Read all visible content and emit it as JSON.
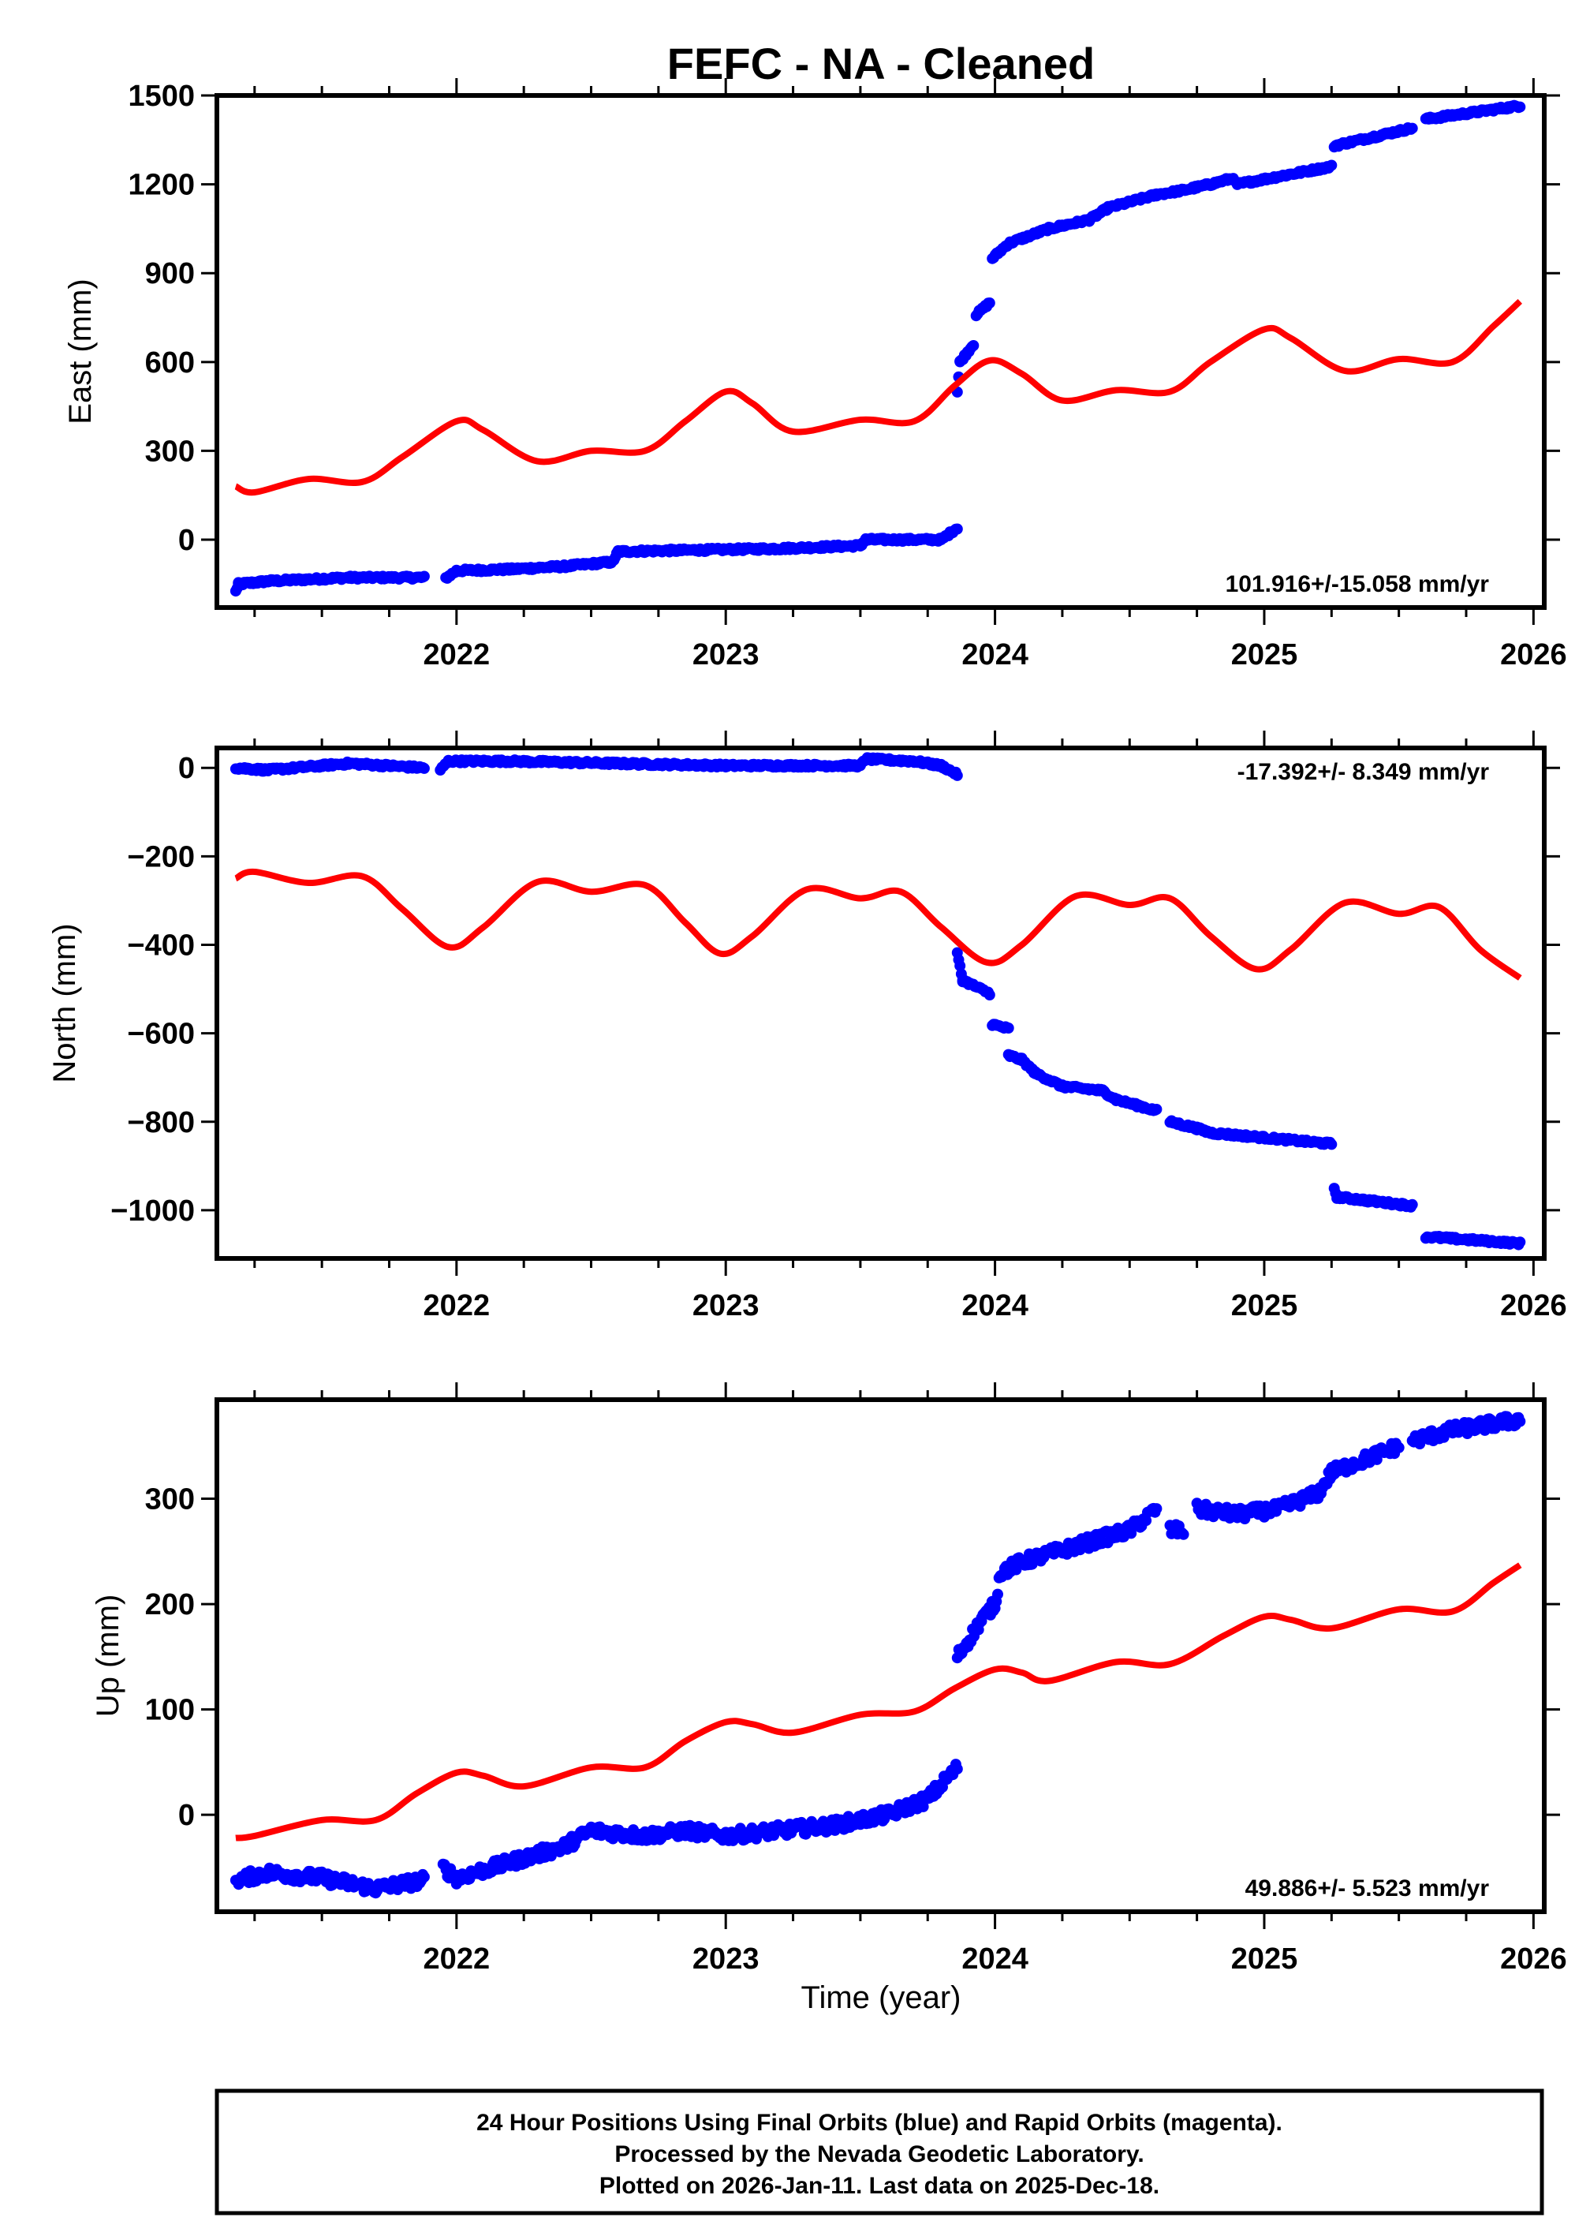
{
  "title": "FEFC  - NA - Cleaned",
  "xlabel": "Time (year)",
  "caption": [
    "24 Hour Positions Using Final Orbits (blue) and Rapid Orbits (magenta).",
    "Processed by the Nevada Geodetic Laboratory.",
    "Plotted on 2026-Jan-11. Last data on 2025-Dec-18."
  ],
  "colors": {
    "observed": "#0000ff",
    "model": "#ff0000",
    "axis": "#000000"
  },
  "chart_data": [
    {
      "type": "scatter",
      "name": "east",
      "ylabel": "East (mm)",
      "rate_label": "101.916+/-15.058 mm/yr",
      "xlim": [
        2021.11,
        2026.04
      ],
      "ylim": [
        -229,
        1500
      ],
      "xticks": [
        2022,
        2023,
        2024,
        2025,
        2026
      ],
      "yticks": [
        0,
        300,
        600,
        900,
        1200,
        1500
      ],
      "observed_segments": [
        [
          [
            2021.18,
            -175
          ],
          [
            2021.19,
            -150
          ],
          [
            2021.3,
            -140
          ],
          [
            2021.6,
            -128
          ],
          [
            2021.88,
            -128
          ]
        ],
        [
          [
            2021.96,
            -130
          ],
          [
            2022.0,
            -105
          ],
          [
            2022.2,
            -100
          ],
          [
            2022.4,
            -90
          ],
          [
            2022.58,
            -75
          ],
          [
            2022.6,
            -40
          ],
          [
            2022.9,
            -35
          ],
          [
            2023.2,
            -30
          ],
          [
            2023.5,
            -20
          ],
          [
            2023.52,
            0
          ],
          [
            2023.8,
            0
          ],
          [
            2023.86,
            40
          ]
        ],
        [
          [
            2023.86,
            500
          ],
          [
            2023.87,
            600
          ],
          [
            2023.92,
            660
          ]
        ],
        [
          [
            2023.93,
            760
          ],
          [
            2023.98,
            800
          ]
        ],
        [
          [
            2023.99,
            950
          ],
          [
            2024.05,
            1000
          ],
          [
            2024.2,
            1050
          ],
          [
            2024.35,
            1080
          ],
          [
            2024.42,
            1120
          ],
          [
            2024.6,
            1165
          ],
          [
            2024.7,
            1180
          ],
          [
            2024.8,
            1200
          ],
          [
            2024.88,
            1220
          ],
          [
            2024.9,
            1200
          ],
          [
            2025.25,
            1260
          ]
        ],
        [
          [
            2025.26,
            1330
          ],
          [
            2025.55,
            1390
          ]
        ],
        [
          [
            2025.6,
            1420
          ],
          [
            2025.95,
            1465
          ]
        ]
      ],
      "model_curve": [
        [
          2021.18,
          180
        ],
        [
          2021.25,
          160
        ],
        [
          2021.45,
          205
        ],
        [
          2021.65,
          195
        ],
        [
          2021.8,
          280
        ],
        [
          2022.0,
          400
        ],
        [
          2022.1,
          370
        ],
        [
          2022.3,
          265
        ],
        [
          2022.5,
          300
        ],
        [
          2022.7,
          300
        ],
        [
          2022.85,
          400
        ],
        [
          2023.0,
          500
        ],
        [
          2023.1,
          460
        ],
        [
          2023.25,
          365
        ],
        [
          2023.5,
          405
        ],
        [
          2023.7,
          400
        ],
        [
          2023.85,
          520
        ],
        [
          2023.98,
          605
        ],
        [
          2024.1,
          560
        ],
        [
          2024.25,
          470
        ],
        [
          2024.45,
          505
        ],
        [
          2024.65,
          500
        ],
        [
          2024.8,
          600
        ],
        [
          2025.0,
          710
        ],
        [
          2025.1,
          680
        ],
        [
          2025.3,
          570
        ],
        [
          2025.5,
          610
        ],
        [
          2025.7,
          600
        ],
        [
          2025.85,
          720
        ],
        [
          2025.95,
          805
        ]
      ]
    },
    {
      "type": "scatter",
      "name": "north",
      "ylabel": "North (mm)",
      "rate_label": "-17.392+/- 8.349 mm/yr",
      "xlim": [
        2021.11,
        2026.04
      ],
      "ylim": [
        -1109,
        45
      ],
      "xticks": [
        2022,
        2023,
        2024,
        2025,
        2026
      ],
      "yticks": [
        0,
        -200,
        -400,
        -600,
        -800,
        -1000
      ],
      "observed_segments": [
        [
          [
            2021.18,
            0
          ],
          [
            2021.3,
            -5
          ],
          [
            2021.6,
            10
          ],
          [
            2021.88,
            0
          ]
        ],
        [
          [
            2021.94,
            -5
          ],
          [
            2021.97,
            15
          ],
          [
            2022.2,
            15
          ],
          [
            2022.6,
            10
          ],
          [
            2023.0,
            5
          ],
          [
            2023.5,
            5
          ],
          [
            2023.52,
            20
          ],
          [
            2023.7,
            15
          ],
          [
            2023.8,
            5
          ],
          [
            2023.86,
            -15
          ]
        ],
        [
          [
            2023.86,
            -420
          ],
          [
            2023.88,
            -480
          ],
          [
            2023.98,
            -510
          ]
        ],
        [
          [
            2023.99,
            -580
          ],
          [
            2024.05,
            -590
          ]
        ],
        [
          [
            2024.05,
            -650
          ],
          [
            2024.1,
            -660
          ],
          [
            2024.15,
            -690
          ],
          [
            2024.25,
            -720
          ],
          [
            2024.4,
            -730
          ],
          [
            2024.45,
            -750
          ],
          [
            2024.6,
            -775
          ]
        ],
        [
          [
            2024.65,
            -800
          ],
          [
            2024.75,
            -815
          ],
          [
            2024.8,
            -825
          ],
          [
            2025.25,
            -850
          ]
        ],
        [
          [
            2025.26,
            -950
          ],
          [
            2025.27,
            -970
          ],
          [
            2025.55,
            -990
          ]
        ],
        [
          [
            2025.6,
            -1060
          ],
          [
            2025.95,
            -1075
          ]
        ]
      ],
      "model_curve": [
        [
          2021.18,
          -250
        ],
        [
          2021.25,
          -235
        ],
        [
          2021.45,
          -260
        ],
        [
          2021.65,
          -245
        ],
        [
          2021.8,
          -320
        ],
        [
          2021.97,
          -405
        ],
        [
          2022.1,
          -360
        ],
        [
          2022.3,
          -258
        ],
        [
          2022.5,
          -280
        ],
        [
          2022.7,
          -265
        ],
        [
          2022.85,
          -350
        ],
        [
          2022.98,
          -420
        ],
        [
          2023.1,
          -380
        ],
        [
          2023.3,
          -275
        ],
        [
          2023.5,
          -295
        ],
        [
          2023.65,
          -280
        ],
        [
          2023.8,
          -360
        ],
        [
          2023.97,
          -440
        ],
        [
          2024.1,
          -400
        ],
        [
          2024.3,
          -290
        ],
        [
          2024.5,
          -310
        ],
        [
          2024.65,
          -295
        ],
        [
          2024.8,
          -380
        ],
        [
          2024.97,
          -455
        ],
        [
          2025.1,
          -410
        ],
        [
          2025.3,
          -305
        ],
        [
          2025.5,
          -330
        ],
        [
          2025.65,
          -315
        ],
        [
          2025.8,
          -410
        ],
        [
          2025.95,
          -475
        ]
      ]
    },
    {
      "type": "scatter",
      "name": "up",
      "ylabel": "Up (mm)",
      "rate_label": "49.886+/- 5.523 mm/yr",
      "xlim": [
        2021.11,
        2026.04
      ],
      "ylim": [
        -92,
        394
      ],
      "xticks": [
        2022,
        2023,
        2024,
        2025,
        2026
      ],
      "yticks": [
        0,
        100,
        200,
        300
      ],
      "observed_segments": [
        [
          [
            2021.18,
            -62
          ],
          [
            2021.3,
            -55
          ],
          [
            2021.5,
            -60
          ],
          [
            2021.7,
            -70
          ],
          [
            2021.88,
            -62
          ]
        ],
        [
          [
            2021.95,
            -50
          ],
          [
            2022.0,
            -60
          ],
          [
            2022.2,
            -45
          ],
          [
            2022.4,
            -30
          ],
          [
            2022.5,
            -15
          ],
          [
            2022.7,
            -20
          ],
          [
            2022.85,
            -15
          ],
          [
            2023.0,
            -20
          ],
          [
            2023.2,
            -15
          ],
          [
            2023.4,
            -10
          ],
          [
            2023.6,
            0
          ],
          [
            2023.75,
            15
          ],
          [
            2023.86,
            45
          ]
        ],
        [
          [
            2023.86,
            150
          ],
          [
            2023.9,
            165
          ],
          [
            2023.95,
            185
          ],
          [
            2024.0,
            200
          ],
          [
            2024.02,
            230
          ],
          [
            2024.1,
            240
          ],
          [
            2024.3,
            255
          ],
          [
            2024.5,
            270
          ],
          [
            2024.6,
            290
          ]
        ],
        [
          [
            2024.65,
            270
          ],
          [
            2024.7,
            270
          ]
        ],
        [
          [
            2024.75,
            290
          ],
          [
            2024.9,
            285
          ],
          [
            2025.05,
            290
          ],
          [
            2025.2,
            305
          ],
          [
            2025.25,
            325
          ],
          [
            2025.5,
            350
          ]
        ],
        [
          [
            2025.55,
            355
          ],
          [
            2025.7,
            365
          ],
          [
            2025.95,
            375
          ]
        ]
      ],
      "model_curve": [
        [
          2021.18,
          -22
        ],
        [
          2021.25,
          -20
        ],
        [
          2021.5,
          -5
        ],
        [
          2021.7,
          -5
        ],
        [
          2021.85,
          20
        ],
        [
          2022.0,
          40
        ],
        [
          2022.1,
          37
        ],
        [
          2022.25,
          27
        ],
        [
          2022.5,
          45
        ],
        [
          2022.7,
          45
        ],
        [
          2022.85,
          70
        ],
        [
          2023.0,
          88
        ],
        [
          2023.1,
          86
        ],
        [
          2023.25,
          78
        ],
        [
          2023.5,
          95
        ],
        [
          2023.7,
          98
        ],
        [
          2023.85,
          120
        ],
        [
          2024.0,
          138
        ],
        [
          2024.1,
          135
        ],
        [
          2024.2,
          127
        ],
        [
          2024.45,
          145
        ],
        [
          2024.65,
          143
        ],
        [
          2024.85,
          170
        ],
        [
          2025.0,
          188
        ],
        [
          2025.1,
          185
        ],
        [
          2025.25,
          177
        ],
        [
          2025.5,
          195
        ],
        [
          2025.7,
          193
        ],
        [
          2025.85,
          220
        ],
        [
          2025.95,
          237
        ]
      ]
    }
  ]
}
